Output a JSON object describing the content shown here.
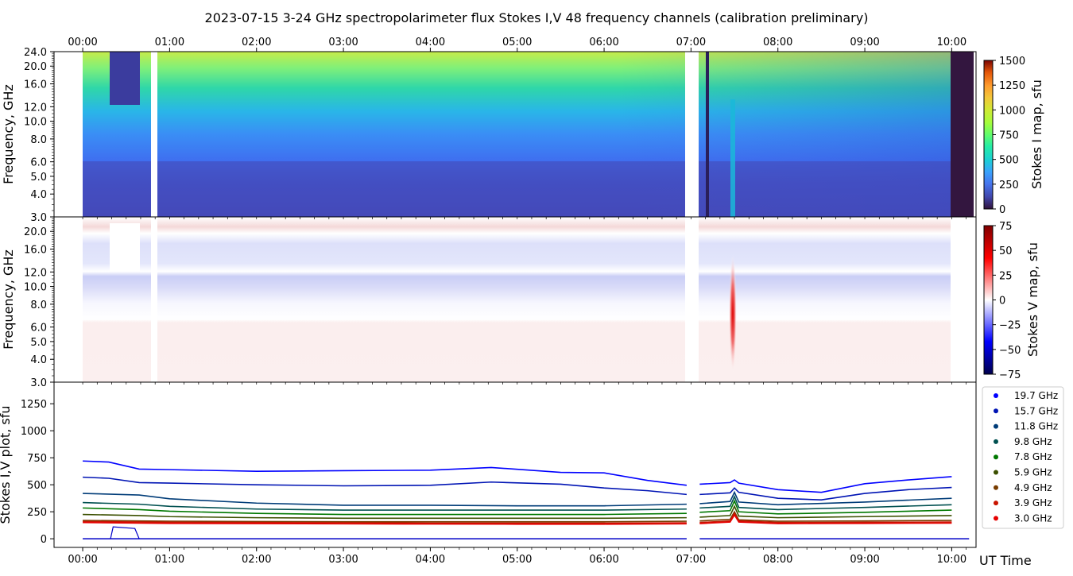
{
  "title": "2023-07-15     3-24 GHz spectropolarimeter flux   Stokes I,V   48 frequency channels   (calibration preliminary)",
  "chart_data": [
    {
      "type": "heatmap",
      "panel": "stokes-i-map",
      "ylabel": "Frequency, GHz",
      "colorbar_label": "Stokes I map, sfu",
      "colorbar_ticks": [
        "0",
        "250",
        "500",
        "750",
        "1000",
        "1250",
        "1500"
      ],
      "colorbar_range": [
        0,
        1500
      ],
      "ylim": [
        3.0,
        24.0
      ],
      "ytick_labels": [
        "3.0",
        "4.0",
        "5.0",
        "6.0",
        "8.0",
        "10.0",
        "12.0",
        "16.0",
        "20.0",
        "24.0"
      ],
      "xtick_labels": [
        "00:00",
        "01:00",
        "02:00",
        "03:00",
        "04:00",
        "05:00",
        "06:00",
        "07:00",
        "08:00",
        "09:00",
        "10:00"
      ],
      "xlim_hours": [
        -0.33,
        10.28
      ],
      "colormap": "turbo"
    },
    {
      "type": "heatmap",
      "panel": "stokes-v-map",
      "ylabel": "Frequency, GHz",
      "colorbar_label": "Stokes V map, sfu",
      "colorbar_ticks": [
        "75",
        "50",
        "25",
        "0",
        "−25",
        "−50",
        "−75"
      ],
      "colorbar_range": [
        -75,
        75
      ],
      "ylim": [
        3.0,
        24.0
      ],
      "ytick_labels": [
        "3.0",
        "4.0",
        "5.0",
        "6.0",
        "8.0",
        "10.0",
        "12.0",
        "16.0",
        "20.0"
      ],
      "colormap": "seismic"
    },
    {
      "type": "line",
      "panel": "stokes-iv-plot",
      "ylabel": "Stokes I,V plot, sfu",
      "xlabel": "UT Time",
      "ylim": [
        -80,
        1450
      ],
      "ytick_labels": [
        "0",
        "250",
        "500",
        "750",
        "1000",
        "1250"
      ],
      "xtick_labels": [
        "00:00",
        "01:00",
        "02:00",
        "03:00",
        "04:00",
        "05:00",
        "06:00",
        "07:00",
        "08:00",
        "09:00",
        "10:00"
      ],
      "legend_position": "right",
      "series": [
        {
          "name": "19.7 GHz",
          "color": "#0000ff",
          "x": [
            0.0,
            0.3,
            0.65,
            1.0,
            2.0,
            3.0,
            4.0,
            4.7,
            5.5,
            6.0,
            6.5,
            6.95,
            7.1,
            7.45,
            7.5,
            7.55,
            8.0,
            8.5,
            9.0,
            9.5,
            10.0
          ],
          "values": [
            720,
            710,
            645,
            640,
            625,
            630,
            635,
            660,
            615,
            610,
            540,
            495,
            505,
            520,
            545,
            515,
            455,
            430,
            510,
            545,
            575
          ]
        },
        {
          "name": "15.7 GHz",
          "color": "#0014b4",
          "x": [
            0.0,
            0.3,
            0.65,
            1.0,
            2.0,
            3.0,
            4.0,
            4.7,
            5.5,
            6.0,
            6.5,
            6.95,
            7.1,
            7.45,
            7.5,
            7.55,
            8.0,
            8.5,
            9.0,
            9.5,
            10.0
          ],
          "values": [
            570,
            560,
            520,
            515,
            500,
            490,
            495,
            525,
            505,
            470,
            445,
            410,
            410,
            425,
            470,
            430,
            375,
            360,
            420,
            455,
            475
          ]
        },
        {
          "name": "11.8 GHz",
          "color": "#003c78",
          "x": [
            0.0,
            0.65,
            1.0,
            2.0,
            3.0,
            4.0,
            5.0,
            6.0,
            6.95,
            7.1,
            7.45,
            7.5,
            7.55,
            8.0,
            9.0,
            10.0
          ],
          "values": [
            420,
            405,
            370,
            330,
            310,
            310,
            305,
            305,
            320,
            325,
            345,
            430,
            340,
            315,
            340,
            375
          ]
        },
        {
          "name": "9.8 GHz",
          "color": "#005050",
          "x": [
            0.0,
            0.65,
            1.0,
            2.0,
            3.0,
            4.0,
            5.0,
            6.0,
            6.95,
            7.1,
            7.45,
            7.5,
            7.55,
            8.0,
            9.0,
            10.0
          ],
          "values": [
            335,
            320,
            300,
            275,
            265,
            265,
            265,
            265,
            275,
            285,
            300,
            390,
            290,
            270,
            290,
            315
          ]
        },
        {
          "name": "7.8 GHz",
          "color": "#007800",
          "x": [
            0.0,
            0.65,
            1.0,
            2.0,
            3.0,
            4.0,
            5.0,
            6.0,
            6.95,
            7.1,
            7.45,
            7.5,
            7.55,
            8.0,
            9.0,
            10.0
          ],
          "values": [
            285,
            270,
            255,
            235,
            225,
            225,
            225,
            225,
            235,
            245,
            260,
            350,
            250,
            230,
            245,
            265
          ]
        },
        {
          "name": "5.9 GHz",
          "color": "#3c5000",
          "x": [
            0.0,
            0.65,
            1.0,
            2.0,
            3.0,
            4.0,
            5.0,
            6.0,
            6.95,
            7.1,
            7.45,
            7.5,
            7.55,
            8.0,
            9.0,
            10.0
          ],
          "values": [
            225,
            215,
            205,
            195,
            190,
            190,
            190,
            190,
            195,
            200,
            215,
            300,
            210,
            195,
            205,
            215
          ]
        },
        {
          "name": "4.9 GHz",
          "color": "#783c00",
          "x": [
            0.0,
            0.65,
            1.0,
            2.0,
            3.0,
            4.0,
            5.0,
            6.0,
            6.95,
            7.1,
            7.45,
            7.5,
            7.55,
            8.0,
            9.0,
            10.0
          ],
          "values": [
            170,
            165,
            162,
            160,
            158,
            158,
            158,
            158,
            162,
            165,
            180,
            250,
            175,
            162,
            165,
            170
          ]
        },
        {
          "name": "3.9 GHz",
          "color": "#c81400",
          "x": [
            0.0,
            0.65,
            1.0,
            2.0,
            3.0,
            4.0,
            5.0,
            6.0,
            6.95,
            7.1,
            7.45,
            7.5,
            7.55,
            8.0,
            9.0,
            10.0
          ],
          "values": [
            160,
            155,
            152,
            150,
            148,
            145,
            145,
            145,
            148,
            150,
            165,
            235,
            165,
            150,
            152,
            155
          ]
        },
        {
          "name": "3.0 GHz",
          "color": "#e60000",
          "x": [
            0.0,
            0.65,
            1.0,
            2.0,
            3.0,
            4.0,
            5.0,
            6.0,
            6.95,
            7.1,
            7.45,
            7.5,
            7.55,
            8.0,
            9.0,
            10.0
          ],
          "values": [
            150,
            145,
            142,
            140,
            138,
            136,
            135,
            135,
            138,
            140,
            155,
            220,
            155,
            140,
            142,
            145
          ]
        }
      ]
    }
  ]
}
